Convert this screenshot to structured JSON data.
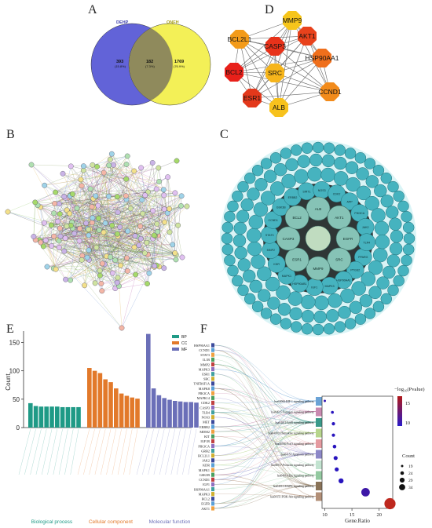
{
  "panels": {
    "A": "A",
    "B": "B",
    "C": "C",
    "D": "D",
    "E": "E",
    "F": "F"
  },
  "venn": {
    "left_label": "DEHP",
    "right_label": "ONFH",
    "left_count": "393",
    "left_pct": "(15.8%)",
    "mid_count": "182",
    "mid_pct": "(7.3%)",
    "right_count": "1769",
    "right_pct": "(76.9%)",
    "left_color": "#5a5bd6",
    "right_color": "#f2ee45"
  },
  "hub": {
    "nodes": [
      {
        "name": "MMP9",
        "color": "#f6c51b"
      },
      {
        "name": "BCL2L1",
        "color": "#f39b1a"
      },
      {
        "name": "CASP3",
        "color": "#e8321a"
      },
      {
        "name": "AKT1",
        "color": "#e8421c"
      },
      {
        "name": "HSP90AA1",
        "color": "#ef6f1c"
      },
      {
        "name": "BCL2",
        "color": "#e8201a"
      },
      {
        "name": "SRC",
        "color": "#f6b51b"
      },
      {
        "name": "CCND1",
        "color": "#f28b1b"
      },
      {
        "name": "ESR1",
        "color": "#e3381b"
      },
      {
        "name": "ALB",
        "color": "#f7c21d"
      }
    ]
  },
  "ppi_c": {
    "inner": [
      "ALB",
      "AKT1",
      "EGFR",
      "SRC",
      "MMP9",
      "ESR1",
      "CASP3",
      "BCL2"
    ],
    "middle": [
      "PPARG",
      "PTGS2",
      "HSP90AA1",
      "MAPK3",
      "IGF1",
      "HSP90AB1",
      "MAPK1",
      "KDR",
      "MMP2",
      "STAT3",
      "CCND1",
      "GSK3B",
      "ERBB2",
      "SIRT1",
      "NOS3",
      "CDK2",
      "APP",
      "PIK3CA",
      "JAK2",
      "TLR4"
    ]
  },
  "bar_chart": {
    "ylabel": "Count",
    "ylim": [
      0,
      170
    ],
    "yticks": [
      "0",
      "50",
      "100",
      "150"
    ],
    "legend": [
      "BP",
      "CC",
      "MF"
    ],
    "colors": {
      "BP": "#1f9a86",
      "CC": "#e2792a",
      "MF": "#6b6fb8"
    },
    "groups": [
      {
        "name": "Biological process",
        "key": "BP",
        "values": [
          43,
          38,
          37,
          37,
          37,
          37,
          36,
          36,
          36,
          36
        ]
      },
      {
        "name": "Cellular component",
        "key": "CC",
        "values": [
          105,
          100,
          96,
          85,
          80,
          69,
          60,
          56,
          53,
          51
        ]
      },
      {
        "name": "Molecular function",
        "key": "MF",
        "values": [
          165,
          69,
          57,
          52,
          49,
          47,
          46,
          45,
          45,
          44
        ]
      }
    ]
  },
  "sankey": {
    "genes": [
      "HSP90AA1",
      "CCND1",
      "STAT3",
      "IL1B",
      "MMP2",
      "MAPK3",
      "ESR1",
      "SRC",
      "TNFRSF1A",
      "MAPK8",
      "PIK3CA",
      "MAPK14",
      "CDK2",
      "CASP3",
      "TLR4",
      "NOS3",
      "MET",
      "ERBB2",
      "MDM2",
      "KIT",
      "IGF1R",
      "PIK3CA",
      "GRB2",
      "BCL2L1",
      "JAK2",
      "KDR",
      "MAPK1",
      "GSK3B",
      "CCND1",
      "IGF1",
      "HSP90AA1",
      "MAPK3",
      "BCL2",
      "EGFR",
      "AKT1"
    ],
    "pathways": [
      "hsa04066:HIF-1 signaling pathway",
      "hsa04915:Estrogen signaling pathway",
      "hsa04012:ErbB signaling pathway",
      "hsa04010:Chemokine signaling pathway",
      "hsa04068:FoxO signaling pathway",
      "hsa04151:Apoptosis pathway",
      "hsa04917:Prolactin signaling pathway",
      "hsa04014:Ras signaling pathway",
      "hsa04010:MAPK signaling pathway",
      "hsa04151:PI3K-Akt signaling pathway"
    ],
    "path_colors": [
      "#6ba3d6",
      "#c98ab0",
      "#3a9a8a",
      "#b7d58c",
      "#e59aa0",
      "#8d88c8",
      "#c2e3d0",
      "#93c9a0",
      "#8a7358",
      "#b28f77"
    ]
  },
  "dot_plot": {
    "xlabel": "Gene.Ratio",
    "xticks": [
      "10",
      "15",
      "20"
    ],
    "xlim": [
      9.5,
      22.5
    ],
    "points": [
      {
        "x": 10.0,
        "count": 16,
        "p": 5
      },
      {
        "x": 11.4,
        "count": 17,
        "p": 4
      },
      {
        "x": 11.6,
        "count": 18,
        "p": 4
      },
      {
        "x": 11.6,
        "count": 18,
        "p": 4
      },
      {
        "x": 11.8,
        "count": 19,
        "p": 4
      },
      {
        "x": 12.0,
        "count": 20,
        "p": 4
      },
      {
        "x": 12.2,
        "count": 20,
        "p": 4
      },
      {
        "x": 13.0,
        "count": 22,
        "p": 4
      },
      {
        "x": 17.5,
        "count": 30,
        "p": 6
      },
      {
        "x": 22.0,
        "count": 36,
        "p": 18
      }
    ],
    "color_legend_title": "−log₁₀(Pvalue)",
    "color_ticks": [
      "15",
      "10"
    ],
    "size_legend_title": "Count",
    "size_ticks": [
      "19",
      "24",
      "29",
      "34"
    ]
  }
}
